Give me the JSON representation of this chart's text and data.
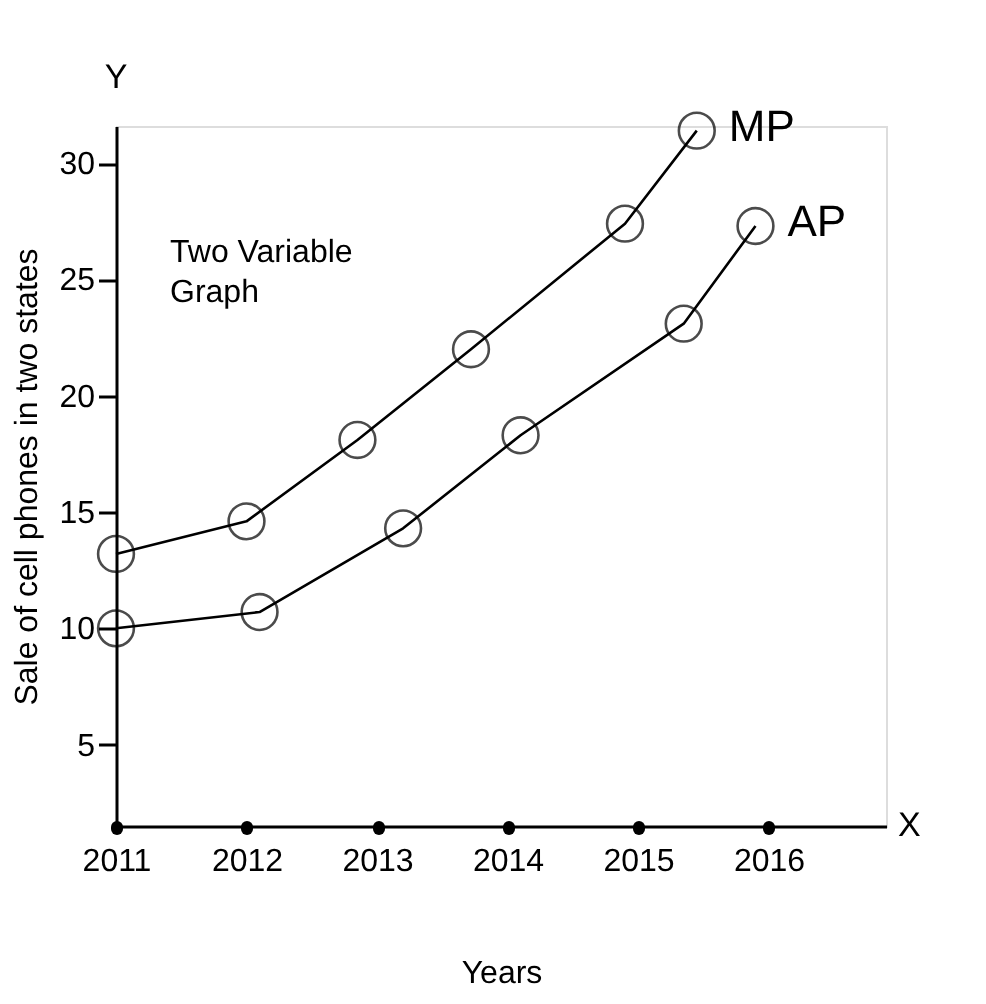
{
  "chart_data": {
    "type": "line",
    "title": "Two Variable Graph",
    "xlabel": "Years",
    "ylabel": "Sale of cell phones in two states",
    "xlim": [
      2011,
      2016.9
    ],
    "xticks": [
      2011,
      2012,
      2013,
      2014,
      2015,
      2016
    ],
    "ylim": [
      1.5,
      31.6
    ],
    "yticks": [
      5,
      10,
      15,
      20,
      25,
      30
    ],
    "series": [
      {
        "name": "MP",
        "color": "#000000",
        "x": [
          2011,
          2012,
          2012.85,
          2013.72,
          2014.9,
          2015.45
        ],
        "values": [
          13.2,
          14.6,
          18.1,
          22.0,
          27.4,
          31.4
        ]
      },
      {
        "name": "AP",
        "color": "#000000",
        "x": [
          2011,
          2012.1,
          2013.2,
          2014.1,
          2015.35,
          2015.9
        ],
        "values": [
          10.0,
          10.7,
          14.3,
          18.3,
          23.1,
          27.3
        ]
      }
    ],
    "annotations": [
      "Y",
      "X"
    ],
    "marker": "circle",
    "line_style": "solid",
    "grid": false,
    "legend": false
  }
}
